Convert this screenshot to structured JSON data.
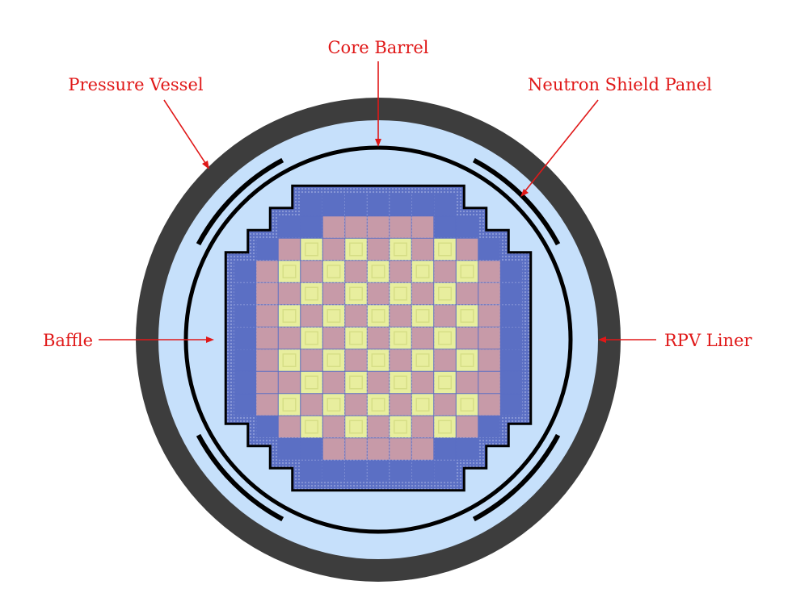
{
  "labels": {
    "core_barrel": "Core Barrel",
    "pressure_vessel": "Pressure Vessel",
    "neutron_shield_panel": "Neutron Shield Panel",
    "baffle": "Baffle",
    "rpv_liner": "RPV Liner"
  },
  "colors": {
    "label_red": "#e01818",
    "vessel_dark": "#3d3d3d",
    "water_light_blue": "#c6e0fb",
    "structural_black": "#000000",
    "reflector_blue": "#5b6fc4",
    "assembly_pink": "#c79aa8",
    "assembly_yellow": "#e8ee9e",
    "assembly_yellow_dark": "#d6de86"
  },
  "core_map": [
    "...RRRRRRR...",
    "..RRPPPPPRR..",
    ".RPYPYPYPYPR.",
    "RPYPYPYPYPYPR",
    "RPPYPYPYPYPPR",
    "RPYPYPYPYPYPR",
    "RPPYPYPYPYPPR",
    "RPYPYPYPYPYPR",
    "RPPYPYPYPYPPR",
    "RPYPYPYPYPYPR",
    ".RPYPYPYPYPR.",
    "..RRPPPPPRR..",
    "...RRRRRRR..."
  ]
}
